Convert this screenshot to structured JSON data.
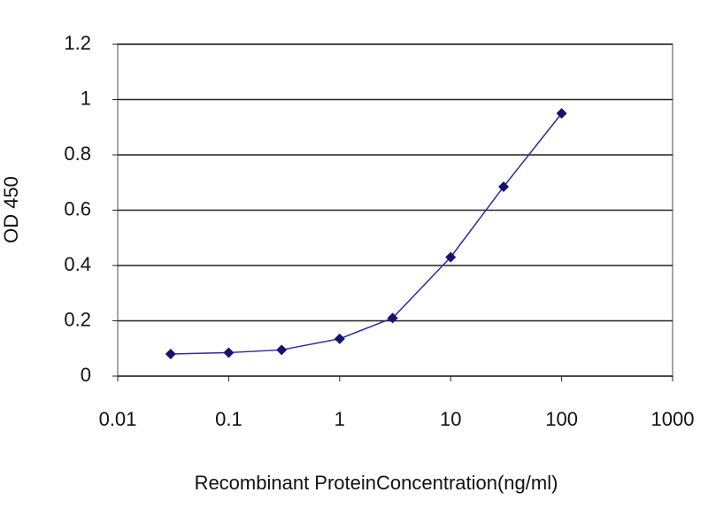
{
  "chart_data": {
    "type": "line",
    "x_label": "Recombinant ProteinConcentration(ng/ml)",
    "y_label": "OD 450",
    "x": [
      0.03,
      0.1,
      0.3,
      1,
      3,
      10,
      30,
      100
    ],
    "series": [
      {
        "color": "#2b2b9a",
        "values": [
          0.08,
          0.085,
          0.095,
          0.135,
          0.21,
          0.43,
          0.685,
          0.95
        ]
      }
    ],
    "xlim": [
      0.01,
      1000
    ],
    "xticks": [
      0.01,
      0.1,
      1,
      10,
      100,
      1000
    ],
    "x_log": true,
    "ylim": [
      0,
      1.2
    ],
    "yticks": [
      0,
      0.2,
      0.4,
      0.6,
      0.8,
      1,
      1.2
    ],
    "grid": true
  }
}
